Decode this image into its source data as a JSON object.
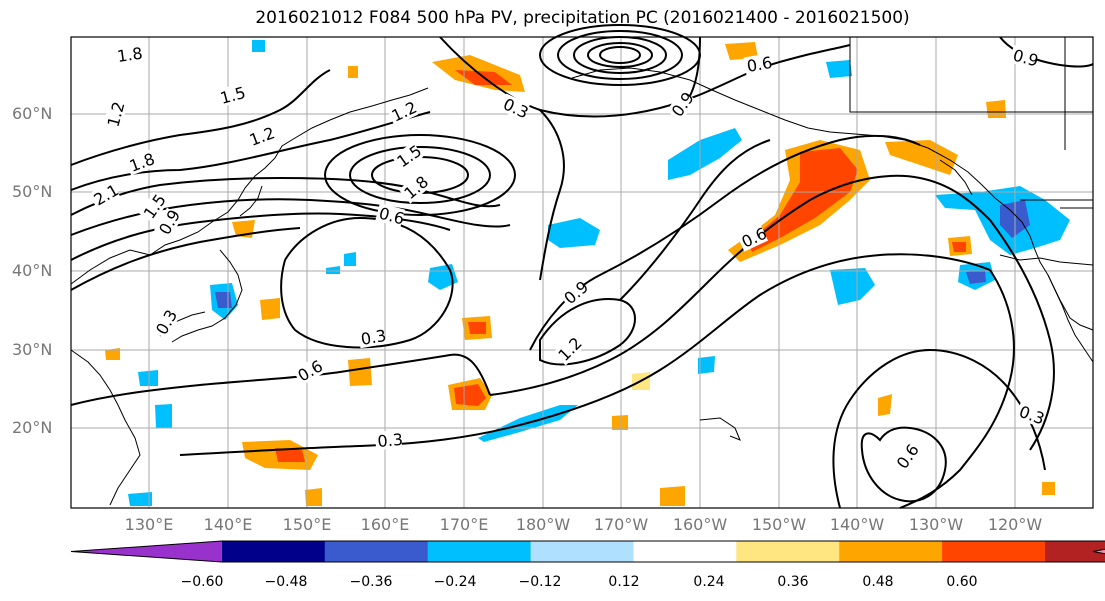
{
  "title": "2016021012 F084 500 hPa PV, precipitation PC (2016021400 - 2016021500)",
  "axes": {
    "lat_labels": [
      "60°N",
      "50°N",
      "40°N",
      "30°N",
      "20°N"
    ],
    "lon_labels": [
      "130°E",
      "140°E",
      "150°E",
      "160°E",
      "170°E",
      "180°W",
      "170°W",
      "160°W",
      "150°W",
      "140°W",
      "130°W",
      "120°W"
    ],
    "gridlines": true
  },
  "contour_labels": [
    "1.8",
    "1.5",
    "1.2",
    "1.2",
    "1.8",
    "2.1",
    "1.5",
    "0.9",
    "0.3",
    "1.2",
    "1.5",
    "1.8",
    "0.6",
    "0.3",
    "0.6",
    "0.3",
    "0.3",
    "0.9",
    "1.2",
    "0.9",
    "0.6",
    "0.6",
    "0.9",
    "0.3",
    "0.6"
  ],
  "colorbar": {
    "ticks": [
      "−0.60",
      "−0.48",
      "−0.36",
      "−0.24",
      "−0.12",
      "0.12",
      "0.24",
      "0.36",
      "0.48",
      "0.60"
    ],
    "colors": [
      "#9932cc",
      "#00008b",
      "#3a5bcd",
      "#00bfff",
      "#b0e0ff",
      "#ffffff",
      "#ffe680",
      "#ffa500",
      "#ff4500",
      "#b22222",
      "#ff88aa"
    ]
  },
  "colors": {
    "frame": "#000000",
    "grid": "#aaaaaa",
    "coast": "#000000",
    "tick_text": "#777777"
  }
}
